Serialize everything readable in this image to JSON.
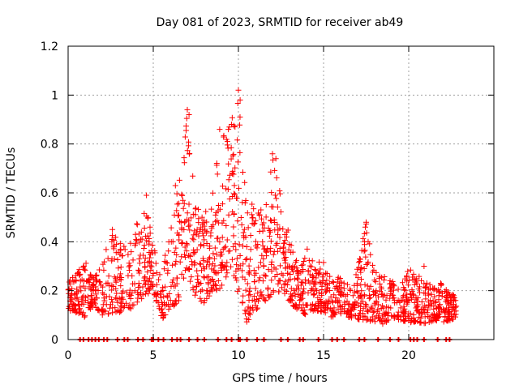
{
  "chart_data": {
    "type": "scatter",
    "title": "Day 081 of 2023, SRMTID for receiver ab49",
    "xlabel": "GPS time / hours",
    "ylabel": "SRMTID / TECUs",
    "xlim": [
      0,
      25
    ],
    "ylim": [
      0,
      1.2
    ],
    "x_ticks": [
      0,
      5,
      10,
      15,
      20
    ],
    "x_tick_labels": [
      "0",
      "5",
      "10",
      "15",
      "20"
    ],
    "y_ticks": [
      0,
      0.2,
      0.4,
      0.6,
      0.8,
      1.0,
      1.2
    ],
    "y_tick_labels": [
      "0",
      "0.2",
      "0.4",
      "0.6",
      "0.8",
      "1",
      "1.2"
    ],
    "grid": true,
    "marker": "+",
    "color": "#ff0000",
    "envelope_note": "Approximate point-cloud envelope [hour, low, high] read from the figure",
    "envelope": [
      [
        0.0,
        0.12,
        0.24
      ],
      [
        0.5,
        0.11,
        0.27
      ],
      [
        1.0,
        0.09,
        0.33
      ],
      [
        1.5,
        0.14,
        0.25
      ],
      [
        2.0,
        0.1,
        0.31
      ],
      [
        2.5,
        0.1,
        0.45
      ],
      [
        3.0,
        0.11,
        0.4
      ],
      [
        3.5,
        0.13,
        0.38
      ],
      [
        4.0,
        0.12,
        0.48
      ],
      [
        4.5,
        0.18,
        0.59
      ],
      [
        5.0,
        0.2,
        0.38
      ],
      [
        5.5,
        0.08,
        0.31
      ],
      [
        6.0,
        0.13,
        0.45
      ],
      [
        6.5,
        0.15,
        0.65
      ],
      [
        7.0,
        0.28,
        0.94
      ],
      [
        7.5,
        0.15,
        0.55
      ],
      [
        8.0,
        0.15,
        0.52
      ],
      [
        8.5,
        0.2,
        0.6
      ],
      [
        9.0,
        0.2,
        0.87
      ],
      [
        9.5,
        0.3,
        0.88
      ],
      [
        10.0,
        0.18,
        1.02
      ],
      [
        10.5,
        0.07,
        0.55
      ],
      [
        11.0,
        0.12,
        0.6
      ],
      [
        11.5,
        0.15,
        0.5
      ],
      [
        12.0,
        0.18,
        0.76
      ],
      [
        12.5,
        0.2,
        0.6
      ],
      [
        13.0,
        0.15,
        0.43
      ],
      [
        13.5,
        0.12,
        0.3
      ],
      [
        14.0,
        0.1,
        0.38
      ],
      [
        14.5,
        0.12,
        0.33
      ],
      [
        15.0,
        0.11,
        0.32
      ],
      [
        15.5,
        0.09,
        0.25
      ],
      [
        16.0,
        0.1,
        0.26
      ],
      [
        16.5,
        0.09,
        0.22
      ],
      [
        17.0,
        0.08,
        0.3
      ],
      [
        17.5,
        0.08,
        0.48
      ],
      [
        18.0,
        0.07,
        0.28
      ],
      [
        18.5,
        0.06,
        0.26
      ],
      [
        19.0,
        0.09,
        0.24
      ],
      [
        19.5,
        0.08,
        0.22
      ],
      [
        20.0,
        0.07,
        0.3
      ],
      [
        20.5,
        0.07,
        0.25
      ],
      [
        21.0,
        0.06,
        0.3
      ],
      [
        21.5,
        0.08,
        0.22
      ],
      [
        22.0,
        0.07,
        0.24
      ],
      [
        22.5,
        0.08,
        0.2
      ],
      [
        22.8,
        0.09,
        0.16
      ]
    ],
    "peaks": [
      [
        7.0,
        0.94
      ],
      [
        7.1,
        0.92
      ],
      [
        9.6,
        0.88
      ],
      [
        9.8,
        0.87
      ],
      [
        10.0,
        1.02
      ],
      [
        10.1,
        0.98
      ],
      [
        4.6,
        0.59
      ],
      [
        12.0,
        0.76
      ],
      [
        12.2,
        0.74
      ],
      [
        17.5,
        0.48
      ],
      [
        17.45,
        0.46
      ],
      [
        20.9,
        0.3
      ],
      [
        2.6,
        0.45
      ],
      [
        6.3,
        0.63
      ],
      [
        8.9,
        0.86
      ]
    ],
    "zero_markers_x": [
      0.7,
      0.9,
      1.2,
      1.4,
      1.6,
      1.8,
      2.1,
      2.3,
      2.9,
      3.3,
      3.5,
      4.1,
      4.4,
      4.9,
      5.0,
      5.3,
      5.6,
      6.1,
      6.4,
      6.6,
      7.1,
      7.6,
      8.0,
      8.8,
      9.3,
      9.6,
      10.0,
      10.1,
      10.5,
      11.1,
      11.5,
      12.5,
      12.9,
      13.6,
      13.8,
      14.7,
      15.5,
      15.8,
      16.2,
      17.1,
      17.4,
      18.2,
      18.9,
      19.4,
      20.1,
      20.3,
      20.5,
      20.9,
      21.7,
      22.2,
      22.4
    ]
  }
}
